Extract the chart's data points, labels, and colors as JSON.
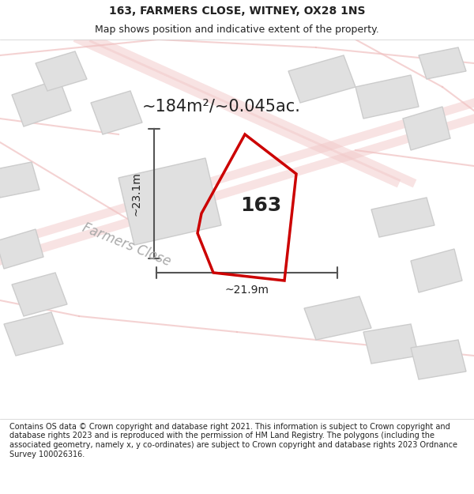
{
  "title_line1": "163, FARMERS CLOSE, WITNEY, OX28 1NS",
  "title_line2": "Map shows position and indicative extent of the property.",
  "area_label": "~184m²/~0.045ac.",
  "plot_number": "163",
  "dim_height": "~23.1m",
  "dim_width": "~21.9m",
  "street_label": "Farmers Close",
  "footer_text": "Contains OS data © Crown copyright and database right 2021. This information is subject to Crown copyright and database rights 2023 and is reproduced with the permission of HM Land Registry. The polygons (including the associated geometry, namely x, y co-ordinates) are subject to Crown copyright and database rights 2023 Ordnance Survey 100026316.",
  "bg_color": "#f5f5f5",
  "map_bg": "#ffffff",
  "plot_color": "#cc0000",
  "building_fill": "#d8d8d8",
  "building_stroke": "#b0b0b0",
  "road_color": "#e8b8b8",
  "dim_line_color": "#555555",
  "title_fontsize": 10,
  "subtitle_fontsize": 9,
  "area_fontsize": 15,
  "plot_num_fontsize": 18,
  "dim_fontsize": 10,
  "street_fontsize": 12,
  "footer_fontsize": 7
}
